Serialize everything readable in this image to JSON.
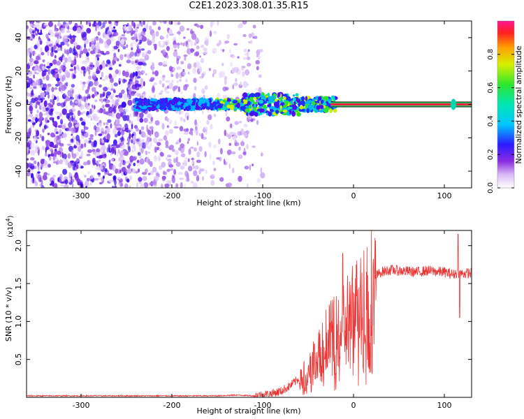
{
  "title": "C2E1.2023.308.01.35.R15",
  "colors": {
    "snr_line": "#ee3333",
    "axis": "#000000"
  },
  "chart_data": [
    {
      "type": "heatmap",
      "name": "spectrogram",
      "xlabel": "Height of straight line (km)",
      "ylabel": "Frequency (Hz)",
      "xlim": [
        -360,
        130
      ],
      "ylim": [
        -50,
        50
      ],
      "x_ticks": [
        -300,
        -200,
        -100,
        0,
        100
      ],
      "y_ticks": [
        -40,
        -20,
        0,
        20,
        40
      ],
      "colorbar": {
        "label": "Normalized spectral amplitude",
        "range": [
          0.0,
          1.0
        ],
        "ticks": [
          "0.0",
          "0.2",
          "0.4",
          "0.6",
          "0.8"
        ]
      },
      "features": {
        "noise_band_x": [
          -360,
          -100
        ],
        "echo_trace_x": [
          -240,
          -20
        ],
        "echo_trace_freq_hz": 0,
        "saturated_trace_x": [
          -25,
          130
        ],
        "bright_spot_x": 110
      }
    },
    {
      "type": "line",
      "name": "snr",
      "xlabel": "Height of straight line (km)",
      "ylabel": "SNR (10 * v/v)",
      "y_multiplier": "(x10",
      "y_multiplier_exp": "4",
      "y_multiplier_close": ")",
      "xlim": [
        -360,
        130
      ],
      "ylim": [
        0,
        2.2
      ],
      "x_ticks": [
        -300,
        -200,
        -100,
        0,
        100
      ],
      "y_ticks": [
        "0.5",
        "1.0",
        "1.5",
        "2.0"
      ],
      "series": [
        {
          "x": [
            -360,
            -300,
            -250,
            -200,
            -150,
            -130,
            -110,
            -100,
            -90,
            -80,
            -70,
            -60,
            -50,
            -45,
            -40,
            -35,
            -30,
            -25,
            -20,
            -15,
            -10,
            -5,
            0,
            5,
            10,
            15,
            20,
            25,
            30,
            40,
            50,
            60,
            70,
            80,
            90,
            100,
            110,
            115,
            120,
            130
          ],
          "y": [
            0.02,
            0.02,
            0.02,
            0.02,
            0.02,
            0.03,
            0.02,
            0.03,
            0.05,
            0.08,
            0.15,
            0.25,
            0.35,
            0.5,
            0.55,
            0.65,
            0.8,
            0.85,
            0.9,
            1.0,
            1.1,
            1.15,
            1.2,
            1.3,
            1.4,
            1.5,
            1.55,
            1.6,
            1.65,
            1.68,
            1.67,
            1.66,
            1.65,
            1.67,
            1.66,
            1.65,
            1.62,
            1.65,
            1.63,
            1.64
          ]
        }
      ],
      "spikes": [
        {
          "x": -12,
          "y": 1.9
        },
        {
          "x": 115,
          "y": 2.15
        },
        {
          "x": 117,
          "y": 1.05
        }
      ]
    }
  ]
}
